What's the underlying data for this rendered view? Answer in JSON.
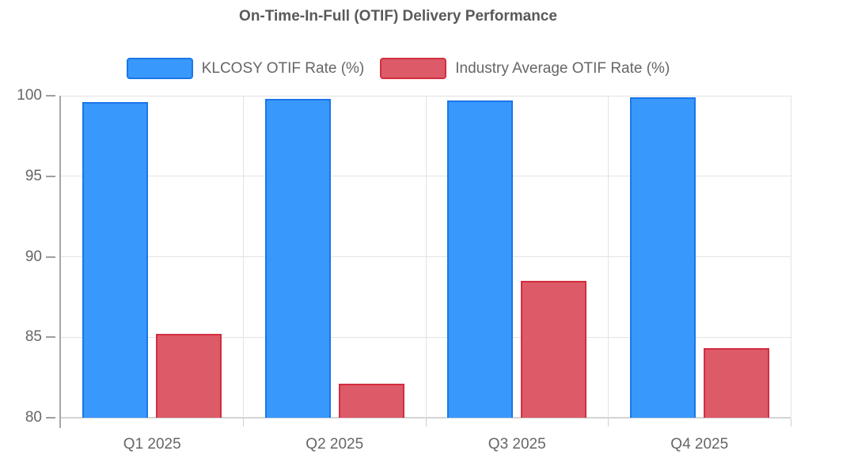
{
  "chart_data": {
    "type": "bar",
    "title": "On-Time-In-Full (OTIF) Delivery Performance",
    "categories": [
      "Q1 2025",
      "Q2 2025",
      "Q3 2025",
      "Q4 2025"
    ],
    "series": [
      {
        "id": "klcosy",
        "name": "KLCOSY OTIF Rate (%)",
        "values": [
          99.6,
          99.8,
          99.7,
          99.9
        ],
        "fill": "#3998fc",
        "border": "#1b76e9"
      },
      {
        "id": "industry-average",
        "name": "Industry Average OTIF Rate (%)",
        "values": [
          85.2,
          82.1,
          88.5,
          84.3
        ],
        "fill": "#dd5a68",
        "border": "#d22e40"
      }
    ],
    "xlabel": "",
    "ylabel": "",
    "ylim": [
      80,
      100
    ],
    "yticks": [
      80,
      85,
      90,
      95,
      100
    ],
    "grid": true,
    "legend_position": "top"
  },
  "style": {
    "title_color": "#595959",
    "label_color": "#666666",
    "grid_color": "#e3e3e3",
    "axis_color": "#a6a6a6",
    "baseline_color": "#d4d4d4",
    "x_tick_color": "#cfcfcf",
    "y_tick_color": "#9e9e9e",
    "background": "#ffffff"
  }
}
